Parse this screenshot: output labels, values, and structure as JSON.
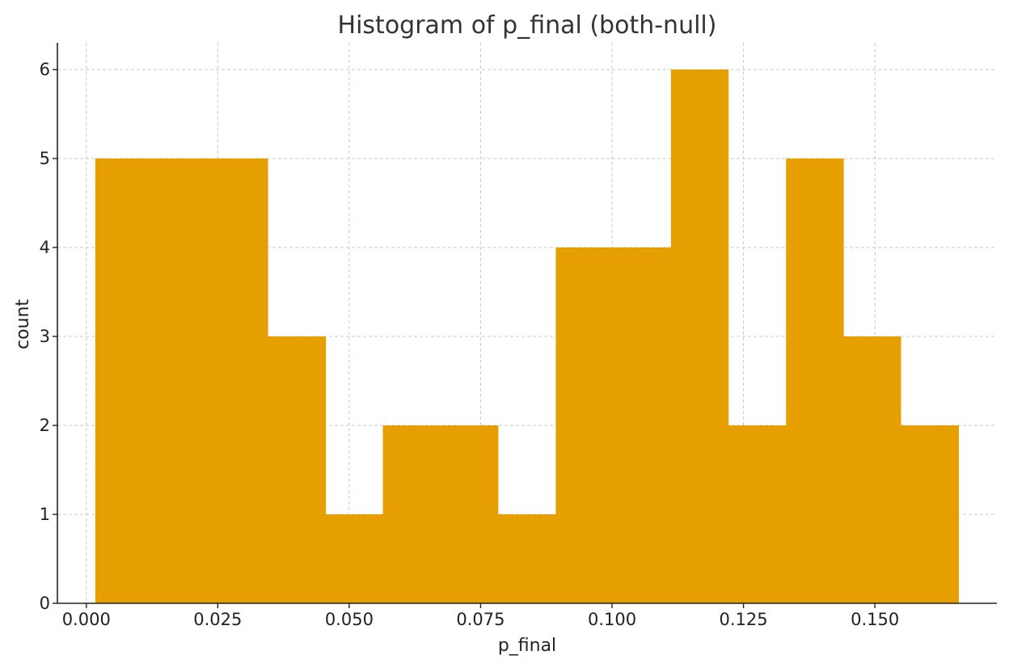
{
  "chart_data": {
    "type": "bar",
    "subtype": "histogram",
    "title": "Histogram of p_final (both-null)",
    "xlabel": "p_final",
    "ylabel": "count",
    "bin_edges": [
      0.0017,
      0.0126,
      0.0236,
      0.0345,
      0.0455,
      0.0564,
      0.0674,
      0.0783,
      0.0893,
      0.1002,
      0.1112,
      0.1221,
      0.1331,
      0.144,
      0.1549,
      0.1659
    ],
    "values": [
      5,
      5,
      5,
      3,
      1,
      2,
      2,
      1,
      4,
      4,
      6,
      2,
      5,
      3,
      2
    ],
    "xlim": [
      -0.0055,
      0.1732
    ],
    "ylim": [
      0,
      6.3
    ],
    "xticks": [
      0.0,
      0.025,
      0.05,
      0.075,
      0.1,
      0.125,
      0.15
    ],
    "xtick_labels": [
      "0.000",
      "0.025",
      "0.050",
      "0.075",
      "0.100",
      "0.125",
      "0.150"
    ],
    "yticks": [
      0,
      1,
      2,
      3,
      4,
      5,
      6
    ],
    "ytick_labels": [
      "0",
      "1",
      "2",
      "3",
      "4",
      "5",
      "6"
    ],
    "grid": true,
    "bar_color": "#E69F00"
  }
}
